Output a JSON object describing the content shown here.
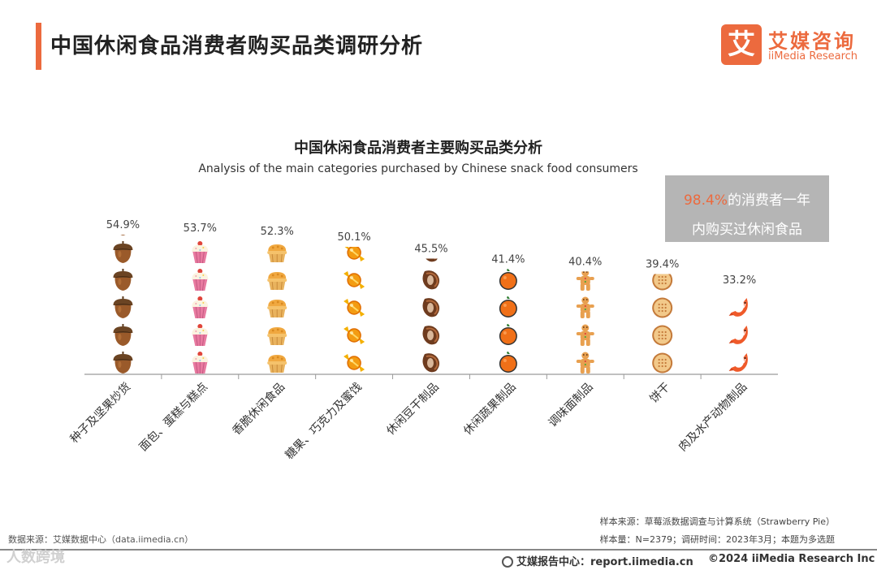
{
  "header": {
    "title": "中国休闲食品消费者购买品类调研分析",
    "logo_mark": "艾",
    "logo_cn": "艾媒咨询",
    "logo_en": "iiMedia Research"
  },
  "callout": {
    "highlight": "98.4%",
    "line1_rest": "的消费者一年",
    "line2": "内购买过休闲食品"
  },
  "chart_data": {
    "type": "bar",
    "title": "中国休闲食品消费者主要购买品类分析",
    "subtitle": "Analysis of the main categories purchased by Chinese snack food consumers",
    "categories": [
      "种子及坚果炒货",
      "面包、蛋糕与糕点",
      "香脆休闲食品",
      "糖果、巧克力及蜜饯",
      "休闲豆干制品",
      "休闲蔬果制品",
      "调味面制品",
      "饼干",
      "肉及水产动物制品"
    ],
    "values": [
      54.9,
      53.7,
      52.3,
      50.1,
      45.5,
      41.4,
      40.4,
      39.4,
      33.2
    ],
    "value_labels": [
      "54.9%",
      "53.7%",
      "52.3%",
      "50.1%",
      "45.5%",
      "41.4%",
      "40.4%",
      "39.4%",
      "33.2%"
    ],
    "icons": [
      "acorn-icon",
      "cupcake-icon",
      "pie-icon",
      "candy-icon",
      "bean-icon",
      "orange-icon",
      "gingerbread-icon",
      "cookie-icon",
      "shrimp-icon"
    ],
    "unit": "%",
    "ylim": [
      0,
      60
    ],
    "xlabel": "",
    "ylabel": ""
  },
  "footer": {
    "source_left": "数据来源：艾媒数据中心（data.iimedia.cn）",
    "sample_source": "样本来源：草莓派数据调查与计算系统（Strawberry Pie）",
    "sample_size": "样本量：N=2379；调研时间：2023年3月；本题为多选题",
    "report_center": "艾媒报告中心：report.iimedia.cn",
    "copyright": "©2024  iiMedia Research Inc",
    "watermark": "人数跨境"
  },
  "colors": {
    "accent": "#ec6a3e",
    "callout_bg": "#b5b5b5"
  }
}
